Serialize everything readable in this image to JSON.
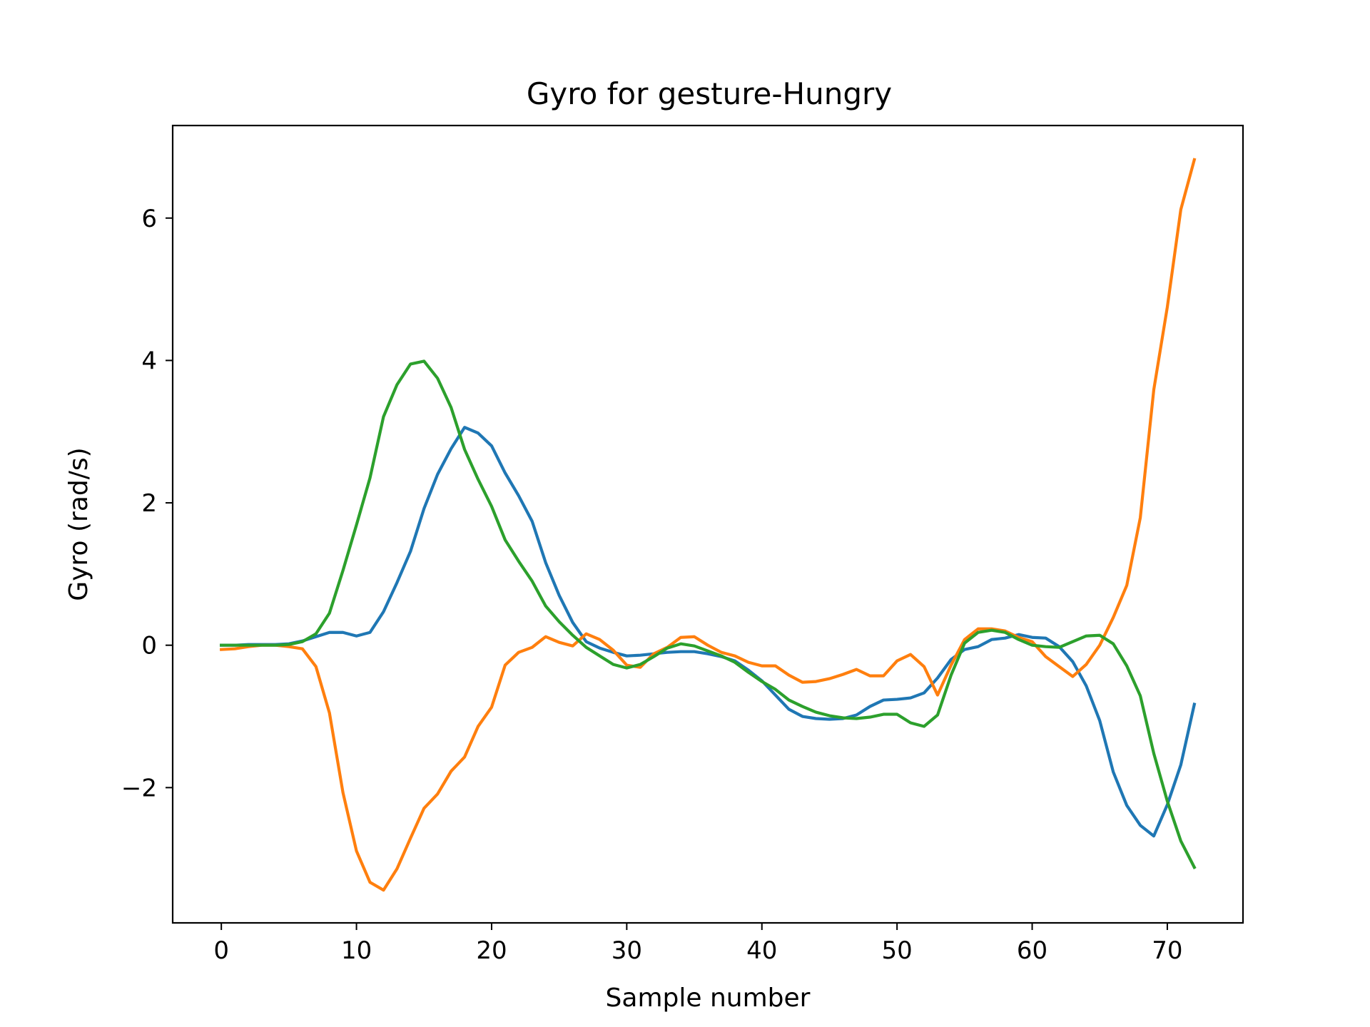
{
  "chart_data": {
    "type": "line",
    "title": "Gyro for gesture-Hungry",
    "xlabel": "Sample number",
    "ylabel": "Gyro  (rad/s)",
    "xlim": [
      -3.6,
      75.6
    ],
    "ylim": [
      -3.9,
      7.3
    ],
    "x_ticks": [
      0,
      10,
      20,
      30,
      40,
      50,
      60,
      70
    ],
    "y_ticks": [
      -2,
      0,
      2,
      4,
      6
    ],
    "y_tick_labels": [
      "−2",
      "0",
      "2",
      "4",
      "6"
    ],
    "x_tick_labels": [
      "0",
      "10",
      "20",
      "30",
      "40",
      "50",
      "60",
      "70"
    ],
    "grid": false,
    "legend": "none",
    "x": [
      0,
      1,
      2,
      3,
      4,
      5,
      6,
      7,
      8,
      9,
      10,
      11,
      12,
      13,
      14,
      15,
      16,
      17,
      18,
      19,
      20,
      21,
      22,
      23,
      24,
      25,
      26,
      27,
      28,
      29,
      30,
      31,
      32,
      33,
      34,
      35,
      36,
      37,
      38,
      39,
      40,
      41,
      42,
      43,
      44,
      45,
      46,
      47,
      48,
      49,
      50,
      51,
      52,
      53,
      54,
      55,
      56,
      57,
      58,
      59,
      60,
      61,
      62,
      63,
      64,
      65,
      66,
      67,
      68,
      69,
      70,
      71,
      72
    ],
    "series": [
      {
        "color": "#1f77b4",
        "values": [
          0.0,
          0.0,
          0.01,
          0.01,
          0.01,
          0.02,
          0.06,
          0.12,
          0.18,
          0.18,
          0.13,
          0.18,
          0.47,
          0.88,
          1.32,
          1.92,
          2.4,
          2.76,
          3.06,
          2.98,
          2.8,
          2.42,
          2.1,
          1.74,
          1.16,
          0.7,
          0.32,
          0.05,
          -0.04,
          -0.1,
          -0.15,
          -0.14,
          -0.12,
          -0.1,
          -0.09,
          -0.09,
          -0.12,
          -0.16,
          -0.22,
          -0.35,
          -0.5,
          -0.7,
          -0.9,
          -1.0,
          -1.03,
          -1.04,
          -1.03,
          -0.98,
          -0.86,
          -0.77,
          -0.76,
          -0.74,
          -0.67,
          -0.46,
          -0.2,
          -0.06,
          -0.02,
          0.08,
          0.1,
          0.15,
          0.11,
          0.1,
          -0.02,
          -0.23,
          -0.57,
          -1.06,
          -1.78,
          -2.25,
          -2.53,
          -2.68,
          -2.24,
          -1.68,
          -0.83
        ]
      },
      {
        "color": "#ff7f0e",
        "values": [
          -0.06,
          -0.05,
          -0.02,
          0.0,
          0.0,
          -0.02,
          -0.05,
          -0.3,
          -0.95,
          -2.07,
          -2.89,
          -3.33,
          -3.44,
          -3.14,
          -2.71,
          -2.29,
          -2.09,
          -1.77,
          -1.57,
          -1.14,
          -0.87,
          -0.28,
          -0.1,
          -0.03,
          0.12,
          0.04,
          -0.01,
          0.16,
          0.08,
          -0.07,
          -0.28,
          -0.31,
          -0.12,
          -0.03,
          0.11,
          0.12,
          0.0,
          -0.1,
          -0.15,
          -0.24,
          -0.29,
          -0.29,
          -0.42,
          -0.52,
          -0.51,
          -0.47,
          -0.41,
          -0.34,
          -0.43,
          -0.43,
          -0.22,
          -0.13,
          -0.3,
          -0.7,
          -0.28,
          0.08,
          0.23,
          0.23,
          0.2,
          0.11,
          0.05,
          -0.16,
          -0.3,
          -0.44,
          -0.27,
          0.0,
          0.39,
          0.84,
          1.79,
          3.59,
          4.75,
          6.12,
          6.82
        ]
      },
      {
        "color": "#2ca02c",
        "values": [
          0.0,
          0.0,
          0.0,
          0.0,
          0.0,
          0.01,
          0.05,
          0.16,
          0.45,
          1.05,
          1.69,
          2.35,
          3.21,
          3.66,
          3.95,
          3.99,
          3.75,
          3.34,
          2.75,
          2.33,
          1.95,
          1.48,
          1.18,
          0.9,
          0.55,
          0.33,
          0.14,
          -0.03,
          -0.15,
          -0.27,
          -0.32,
          -0.27,
          -0.16,
          -0.04,
          0.02,
          -0.01,
          -0.08,
          -0.15,
          -0.24,
          -0.38,
          -0.51,
          -0.62,
          -0.77,
          -0.86,
          -0.94,
          -0.99,
          -1.02,
          -1.03,
          -1.01,
          -0.97,
          -0.97,
          -1.09,
          -1.14,
          -0.98,
          -0.42,
          0.03,
          0.18,
          0.21,
          0.18,
          0.08,
          0.0,
          -0.02,
          -0.03,
          0.05,
          0.13,
          0.14,
          0.02,
          -0.29,
          -0.71,
          -1.52,
          -2.19,
          -2.75,
          -3.12
        ]
      }
    ]
  }
}
